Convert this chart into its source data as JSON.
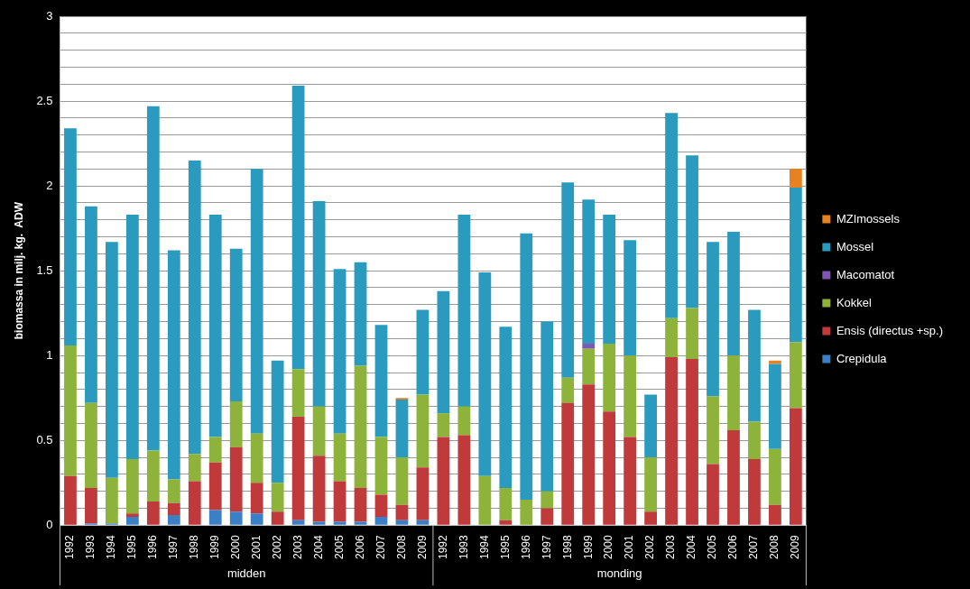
{
  "chart_data": {
    "type": "bar",
    "stacked": true,
    "ylabel": "biomassa in milj. kg.  ADW",
    "categories": [
      "1992",
      "1993",
      "1994",
      "1995",
      "1996",
      "1997",
      "1998",
      "1999",
      "2000",
      "2001",
      "2002",
      "2003",
      "2004",
      "2005",
      "2006",
      "2007",
      "2008",
      "2009",
      "1992",
      "1993",
      "1994",
      "1995",
      "1996",
      "1997",
      "1998",
      "1999",
      "2000",
      "2001",
      "2002",
      "2003",
      "2004",
      "2005",
      "2006",
      "2007",
      "2008",
      "2009"
    ],
    "annotations": [
      "midden",
      "monding"
    ],
    "series": [
      {
        "name": "Crepidula",
        "color": "#3b7fc4",
        "values": [
          0,
          0.01,
          0.01,
          0.05,
          0,
          0.06,
          0,
          0.09,
          0.08,
          0.07,
          0,
          0.03,
          0.02,
          0.02,
          0.02,
          0.05,
          0.03,
          0.03,
          0,
          0,
          0,
          0,
          0,
          0,
          0,
          0,
          0,
          0,
          0,
          0,
          0,
          0,
          0,
          0,
          0,
          0
        ]
      },
      {
        "name": "Ensis (directus +sp.)",
        "color": "#c0393b",
        "values": [
          0.29,
          0.21,
          0,
          0.02,
          0.14,
          0.07,
          0.26,
          0.28,
          0.38,
          0.18,
          0.08,
          0.61,
          0.39,
          0.24,
          0.2,
          0.13,
          0.09,
          0.31,
          0.52,
          0.53,
          0,
          0.03,
          0,
          0.1,
          0.72,
          0.83,
          0.67,
          0.52,
          0.08,
          0.99,
          0.98,
          0.36,
          0.56,
          0.39,
          0.12,
          0.69
        ]
      },
      {
        "name": "Kokkel",
        "color": "#8db33a",
        "values": [
          0.77,
          0.5,
          0.27,
          0.32,
          0.3,
          0.14,
          0.16,
          0.15,
          0.27,
          0.29,
          0.17,
          0.28,
          0.29,
          0.28,
          0.72,
          0.34,
          0.28,
          0.43,
          0.14,
          0.17,
          0.29,
          0.19,
          0.15,
          0.1,
          0.15,
          0.21,
          0.4,
          0.48,
          0.32,
          0.23,
          0.3,
          0.4,
          0.44,
          0.22,
          0.33,
          0.39
        ]
      },
      {
        "name": "Macomatot",
        "color": "#7e57b0",
        "values": [
          0,
          0,
          0,
          0,
          0,
          0,
          0,
          0,
          0,
          0,
          0,
          0,
          0,
          0,
          0,
          0,
          0,
          0,
          0,
          0,
          0,
          0,
          0,
          0,
          0,
          0.03,
          0,
          0,
          0,
          0,
          0,
          0,
          0,
          0,
          0,
          0
        ]
      },
      {
        "name": "Mossel",
        "color": "#2a9bbf",
        "values": [
          1.28,
          1.16,
          1.39,
          1.44,
          2.03,
          1.35,
          1.73,
          1.31,
          0.9,
          1.56,
          0.72,
          1.67,
          1.21,
          0.97,
          0.61,
          0.66,
          0.34,
          0.5,
          0.72,
          1.13,
          1.2,
          0.95,
          1.57,
          1.0,
          1.15,
          0.85,
          0.76,
          0.68,
          0.37,
          1.21,
          0.9,
          0.91,
          0.73,
          0.66,
          0.5,
          0.91
        ]
      },
      {
        "name": "MZImossels",
        "color": "#e8821e",
        "values": [
          0,
          0,
          0,
          0,
          0,
          0,
          0,
          0,
          0,
          0,
          0,
          0,
          0,
          0,
          0,
          0,
          0.01,
          0,
          0,
          0,
          0,
          0,
          0,
          0,
          0,
          0,
          0,
          0,
          0,
          0,
          0,
          0,
          0,
          0,
          0.02,
          0.11
        ]
      }
    ],
    "ylim": [
      0,
      3
    ],
    "yticks": [
      0,
      {
        "value": 0.1,
        "label": null
      },
      {
        "value": 0.2,
        "label": null
      },
      {
        "value": 0.3,
        "label": null
      },
      {
        "value": 0.4,
        "label": null
      },
      0.5,
      {
        "value": 0.6,
        "label": null
      },
      {
        "value": 0.7,
        "label": null
      },
      {
        "value": 0.8,
        "label": null
      },
      {
        "value": 0.9,
        "label": null
      },
      1,
      {
        "value": 1.1,
        "label": null
      },
      {
        "value": 1.2,
        "label": null
      },
      {
        "value": 1.3,
        "label": null
      },
      {
        "value": 1.4,
        "label": null
      },
      1.5,
      {
        "value": 1.6,
        "label": null
      },
      {
        "value": 1.7,
        "label": null
      },
      {
        "value": 1.8,
        "label": null
      },
      {
        "value": 1.9,
        "label": null
      },
      2,
      {
        "value": 2.1,
        "label": null
      },
      {
        "value": 2.2,
        "label": null
      },
      {
        "value": 2.3,
        "label": null
      },
      {
        "value": 2.4,
        "label": null
      },
      2.5,
      {
        "value": 2.6,
        "label": null
      },
      {
        "value": 2.7,
        "label": null
      },
      {
        "value": 2.8,
        "label": null
      },
      {
        "value": 2.9,
        "label": null
      },
      3
    ],
    "grid": "y",
    "legend": "right"
  }
}
